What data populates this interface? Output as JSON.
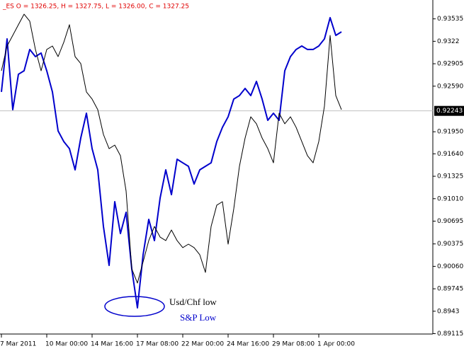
{
  "chart_data": {
    "type": "line",
    "header": "_ES O = 1326.25, H = 1327.75, L = 1326.00, C = 1327.25",
    "series": [
      {
        "color": "#0000cc",
        "width": 2,
        "values": [
          0.92509,
          0.93254,
          0.9226,
          0.92757,
          0.92806,
          0.93105,
          0.93005,
          0.93055,
          0.92806,
          0.92509,
          0.91962,
          0.91813,
          0.91713,
          0.91415,
          0.91862,
          0.9221,
          0.91713,
          0.91415,
          0.9062,
          0.90074,
          0.90968,
          0.90521,
          0.90819,
          0.90024,
          0.89478,
          0.90223,
          0.9072,
          0.90422,
          0.91018,
          0.91415,
          0.91067,
          0.91564,
          0.91514,
          0.91465,
          0.91216,
          0.91415,
          0.91465,
          0.91514,
          0.91813,
          0.92012,
          0.9216,
          0.92409,
          0.92458,
          0.92558,
          0.92458,
          0.92657,
          0.92409,
          0.92111,
          0.9221,
          0.92111,
          0.92806,
          0.93005,
          0.93105,
          0.93154,
          0.93105,
          0.93105,
          0.93154,
          0.93254,
          0.93552,
          0.93303,
          0.93353
        ]
      },
      {
        "color": "#000000",
        "width": 1,
        "values": [
          0.92806,
          0.93154,
          0.93303,
          0.93453,
          0.93601,
          0.93502,
          0.93105,
          0.92806,
          0.93105,
          0.93154,
          0.93005,
          0.93205,
          0.93453,
          0.93005,
          0.92907,
          0.92509,
          0.92409,
          0.9226,
          0.91912,
          0.91713,
          0.91763,
          0.91614,
          0.91117,
          0.90024,
          0.89826,
          0.90124,
          0.90422,
          0.9062,
          0.90471,
          0.90422,
          0.90571,
          0.90422,
          0.90323,
          0.90372,
          0.90323,
          0.90223,
          0.89975,
          0.9062,
          0.90919,
          0.90968,
          0.90372,
          0.90869,
          0.91465,
          0.91862,
          0.9216,
          0.92062,
          0.91862,
          0.91713,
          0.91514,
          0.9221,
          0.92062,
          0.9216,
          0.92012,
          0.91813,
          0.91614,
          0.91514,
          0.91813,
          0.9231,
          0.93303,
          0.92458,
          0.9226
        ]
      }
    ],
    "xlim": [
      0,
      76
    ],
    "xticks": [
      {
        "value": 0,
        "label": "7 Mar 2011"
      },
      {
        "value": 8,
        "label": "10 Mar 00:00"
      },
      {
        "value": 16,
        "label": "14 Mar 16:00"
      },
      {
        "value": 24,
        "label": "17 Mar 08:00"
      },
      {
        "value": 32,
        "label": "22 Mar 00:00"
      },
      {
        "value": 40,
        "label": "24 Mar 16:00"
      },
      {
        "value": 48,
        "label": "29 Mar 08:00"
      },
      {
        "value": 56,
        "label": "1 Apr 00:00"
      }
    ],
    "ylim": [
      0.8911,
      0.9378
    ],
    "yticks": [
      0.93535,
      0.9322,
      0.92905,
      {
        "value": 0.9259,
        "label": "0.92590"
      },
      {
        "value": 0.9195,
        "label": "0.91950"
      },
      {
        "value": 0.9164,
        "label": "0.91640"
      },
      0.91325,
      {
        "value": 0.9101,
        "label": "0.91010"
      },
      0.90695,
      0.90375,
      {
        "value": 0.9006,
        "label": "0.90060"
      },
      0.89745,
      0.8943,
      0.89115
    ],
    "current_price": 0.92243,
    "annotations": [
      {
        "text": "Usd/Chf low",
        "color": "#000000"
      },
      {
        "text": "S&P Low",
        "color": "#0000cc"
      }
    ]
  }
}
